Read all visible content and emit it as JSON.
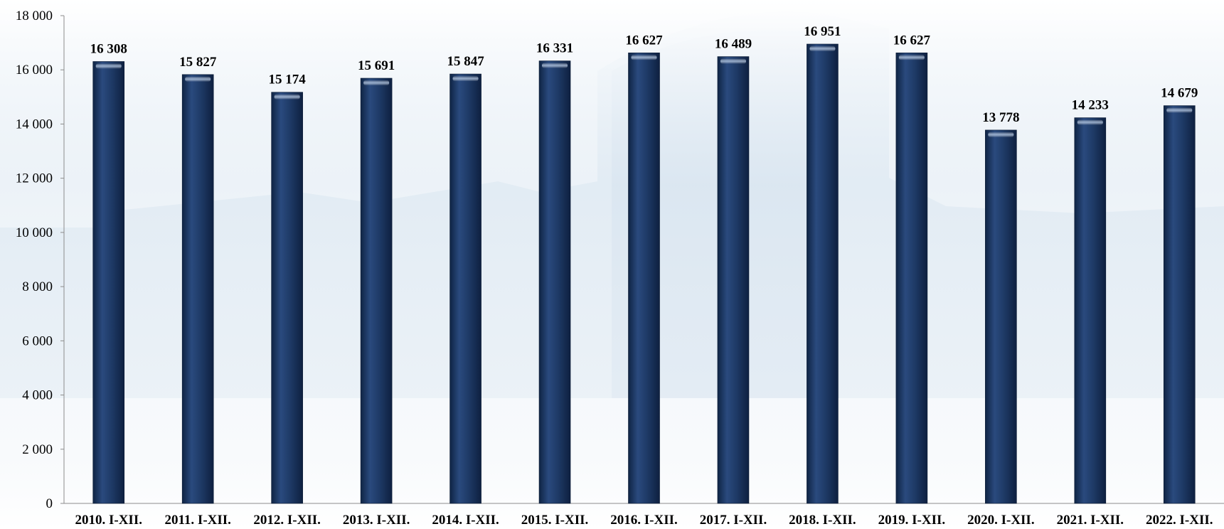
{
  "chart_data": {
    "type": "bar",
    "categories": [
      "2010. I-XII.",
      "2011. I-XII.",
      "2012. I-XII.",
      "2013. I-XII.",
      "2014. I-XII.",
      "2015. I-XII.",
      "2016. I-XII.",
      "2017. I-XII.",
      "2018. I-XII.",
      "2019. I-XII.",
      "2020. I-XII.",
      "2021. I-XII.",
      "2022. I-XII."
    ],
    "values": [
      16308,
      15827,
      15174,
      15691,
      15847,
      16331,
      16627,
      16489,
      16951,
      16627,
      13778,
      14233,
      14679
    ],
    "value_labels": [
      "16 308",
      "15 827",
      "15 174",
      "15 691",
      "15 847",
      "16 331",
      "16 627",
      "16 489",
      "16 951",
      "16 627",
      "13 778",
      "14 233",
      "14 679"
    ],
    "yticks": [
      0,
      2000,
      4000,
      6000,
      8000,
      10000,
      12000,
      14000,
      16000,
      18000
    ],
    "ytick_labels": [
      "0",
      "2 000",
      "4 000",
      "6 000",
      "8 000",
      "10 000",
      "12 000",
      "14 000",
      "16 000",
      "18 000"
    ],
    "ylim": [
      0,
      18000
    ],
    "title": "",
    "xlabel": "",
    "ylabel": "",
    "grid": false,
    "legend": "none",
    "colors": {
      "bar": "#1e3a66",
      "bar_dark": "#0f2444",
      "bar_light": "#2d4f86",
      "axis": "#8c8c8c",
      "background_tint": "#c9d9e8"
    }
  }
}
